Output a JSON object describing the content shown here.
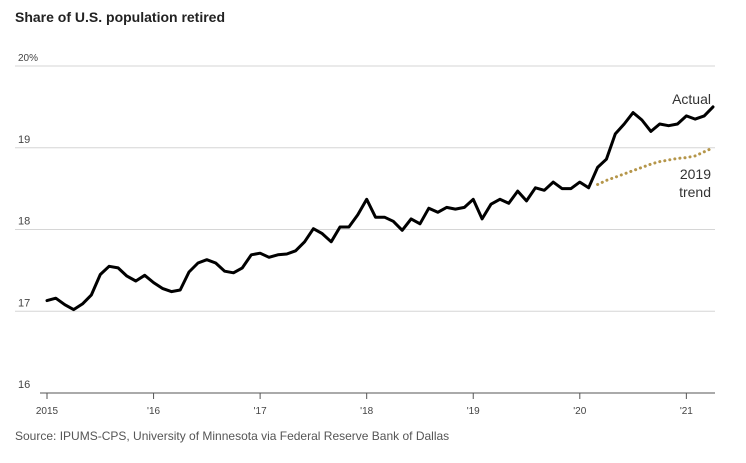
{
  "chart_data": {
    "type": "line",
    "title": "Share of U.S. population retired",
    "source": "Source: IPUMS-CPS, University of Minnesota via Federal Reserve Bank of Dallas",
    "x": [
      2015,
      2015.083,
      2015.167,
      2015.25,
      2015.333,
      2015.417,
      2015.5,
      2015.583,
      2015.667,
      2015.75,
      2015.833,
      2015.917,
      2016,
      2016.083,
      2016.167,
      2016.25,
      2016.333,
      2016.417,
      2016.5,
      2016.583,
      2016.667,
      2016.75,
      2016.833,
      2016.917,
      2017,
      2017.083,
      2017.167,
      2017.25,
      2017.333,
      2017.417,
      2017.5,
      2017.583,
      2017.667,
      2017.75,
      2017.833,
      2017.917,
      2018,
      2018.083,
      2018.167,
      2018.25,
      2018.333,
      2018.417,
      2018.5,
      2018.583,
      2018.667,
      2018.75,
      2018.833,
      2018.917,
      2019,
      2019.083,
      2019.167,
      2019.25,
      2019.333,
      2019.417,
      2019.5,
      2019.583,
      2019.667,
      2019.75,
      2019.833,
      2019.917,
      2020,
      2020.083,
      2020.167,
      2020.25,
      2020.333,
      2020.417,
      2020.5,
      2020.583,
      2020.667,
      2020.75,
      2020.833,
      2020.917,
      2021,
      2021.083,
      2021.167,
      2021.25
    ],
    "series": [
      {
        "name": "Actual",
        "color": "#000000",
        "dash": "solid",
        "values": [
          17.13,
          17.16,
          17.08,
          17.02,
          17.09,
          17.2,
          17.45,
          17.55,
          17.53,
          17.43,
          17.37,
          17.44,
          17.35,
          17.28,
          17.24,
          17.26,
          17.48,
          17.59,
          17.63,
          17.59,
          17.49,
          17.47,
          17.53,
          17.69,
          17.71,
          17.66,
          17.69,
          17.7,
          17.74,
          17.85,
          18.01,
          17.95,
          17.85,
          18.03,
          18.03,
          18.18,
          18.37,
          18.15,
          18.15,
          18.1,
          17.99,
          18.13,
          18.07,
          18.26,
          18.21,
          18.27,
          18.25,
          18.27,
          18.37,
          18.13,
          18.31,
          18.37,
          18.32,
          18.47,
          18.35,
          18.51,
          18.48,
          18.58,
          18.5,
          18.5,
          18.58,
          18.51,
          18.76,
          18.86,
          19.17,
          19.29,
          19.43,
          19.34,
          19.2,
          19.29,
          19.27,
          19.29,
          19.39,
          19.35,
          19.39,
          19.5
        ]
      },
      {
        "name": "2019 trend",
        "color": "#b5964a",
        "dash": "dotted",
        "values": [
          null,
          null,
          null,
          null,
          null,
          null,
          null,
          null,
          null,
          null,
          null,
          null,
          null,
          null,
          null,
          null,
          null,
          null,
          null,
          null,
          null,
          null,
          null,
          null,
          null,
          null,
          null,
          null,
          null,
          null,
          null,
          null,
          null,
          null,
          null,
          null,
          null,
          null,
          null,
          null,
          null,
          null,
          null,
          null,
          null,
          null,
          null,
          null,
          null,
          null,
          null,
          null,
          null,
          null,
          null,
          null,
          null,
          null,
          null,
          null,
          null,
          null,
          18.55,
          18.6,
          18.64,
          18.68,
          18.72,
          18.76,
          18.8,
          18.83,
          18.85,
          18.87,
          18.88,
          18.9,
          18.95,
          19.0
        ]
      }
    ],
    "xlim": [
      2015,
      2021.25
    ],
    "xticks": [
      2015,
      {
        "value": 2016,
        "label": "'16"
      },
      {
        "value": 2017,
        "label": "'17"
      },
      {
        "value": 2018,
        "label": "'18"
      },
      {
        "value": 2019,
        "label": "'19"
      },
      {
        "value": 2020,
        "label": "'20"
      },
      {
        "value": 2021,
        "label": "'21"
      }
    ],
    "ylim": [
      16,
      20
    ],
    "yticks": [
      16,
      17,
      18,
      19,
      {
        "value": 20,
        "label": "20%"
      }
    ],
    "grid": true
  }
}
